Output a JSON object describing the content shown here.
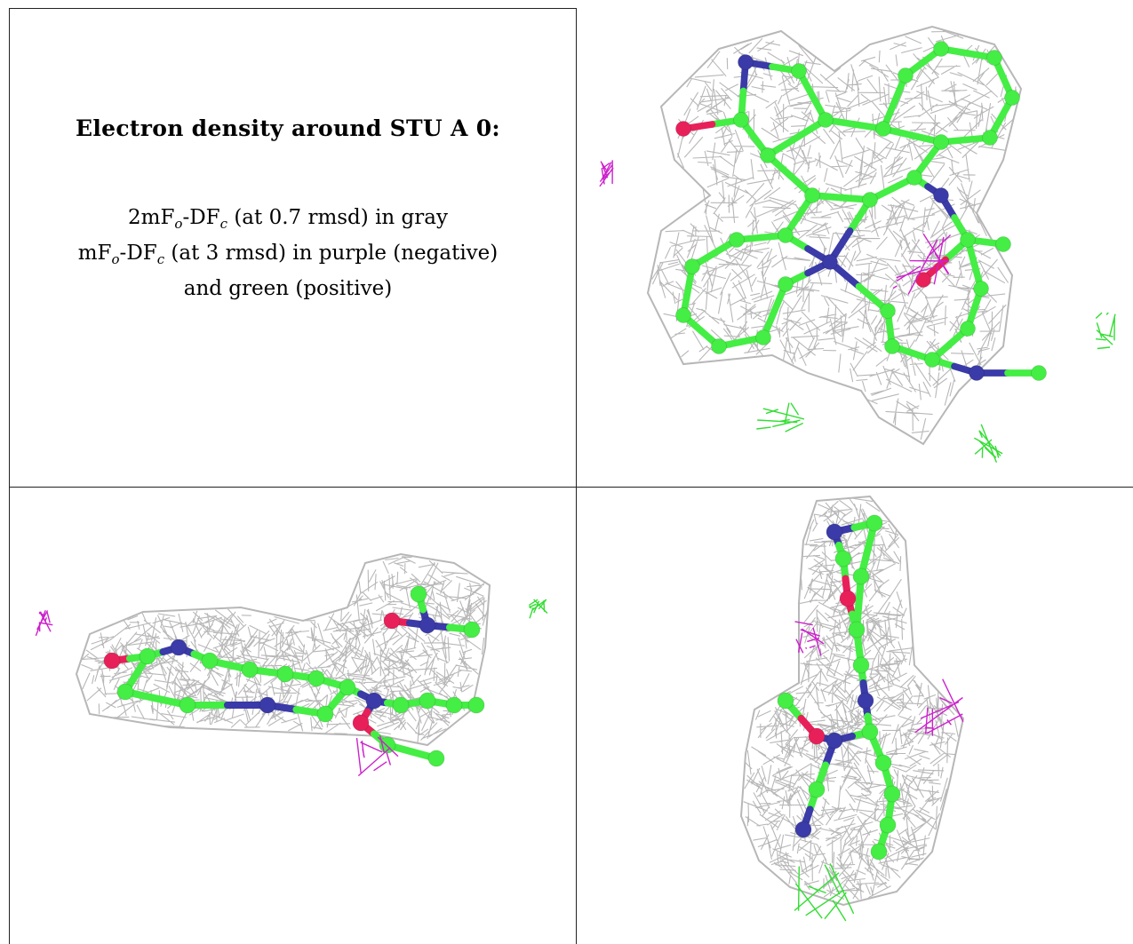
{
  "caption": {
    "title": "Electron density around STU A 0:",
    "line1": {
      "a": "2mF",
      "a_sub": "o",
      "b": "-DF",
      "b_sub": "c",
      "rest": " (at 0.7 rmsd) in gray"
    },
    "line2": {
      "a": "mF",
      "a_sub": "o",
      "b": "-DF",
      "b_sub": "c",
      "rest": " (at 3 rmsd) in purple (negative)"
    },
    "line3": "and green (positive)"
  },
  "colors": {
    "mesh": "#b4b4b4",
    "carbon": "#44ee44",
    "nitrogen": "#3a3aa8",
    "oxygen": "#e8205a",
    "negative_density": "#cc22cc",
    "positive_density": "#33dd33"
  }
}
